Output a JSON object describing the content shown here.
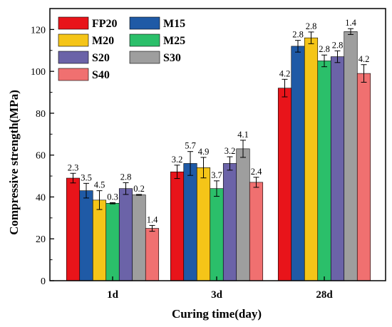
{
  "chart_data": {
    "type": "bar",
    "xlabel": "Curing time(day)",
    "ylabel": "Compressive strength(MPa)",
    "ylim": [
      0,
      130
    ],
    "yticks": [
      0,
      20,
      40,
      60,
      80,
      100,
      120
    ],
    "categories": [
      "1d",
      "3d",
      "28d"
    ],
    "legend_placement": "top-left",
    "series": [
      {
        "name": "FP20",
        "color": "#e8141a",
        "values": [
          49,
          52,
          92
        ],
        "errors": [
          2.3,
          3.2,
          4.2
        ],
        "labels": [
          "2.3",
          "3.2",
          "4.2"
        ]
      },
      {
        "name": "M15",
        "color": "#1f5aa6",
        "values": [
          43,
          56,
          112
        ],
        "errors": [
          3.5,
          5.7,
          2.8
        ],
        "labels": [
          "3.5",
          "5.7",
          "2.8"
        ]
      },
      {
        "name": "M20",
        "color": "#f5c518",
        "values": [
          38.5,
          54,
          116
        ],
        "errors": [
          4.5,
          4.9,
          2.8
        ],
        "labels": [
          "4.5",
          "4.9",
          "2.8"
        ]
      },
      {
        "name": "M25",
        "color": "#2bbf6a",
        "values": [
          37,
          44,
          105
        ],
        "errors": [
          0.3,
          3.7,
          2.8
        ],
        "labels": [
          "0.3",
          "3.7",
          "2.8"
        ]
      },
      {
        "name": "S20",
        "color": "#6b63a8",
        "values": [
          44,
          56,
          107
        ],
        "errors": [
          2.8,
          3.2,
          2.8
        ],
        "labels": [
          "2.8",
          "3.2",
          "2.8"
        ]
      },
      {
        "name": "S30",
        "color": "#9e9e9e",
        "values": [
          41,
          63,
          119
        ],
        "errors": [
          0.2,
          4.1,
          1.4
        ],
        "labels": [
          "0.2",
          "4.1",
          "1.4"
        ]
      },
      {
        "name": "S40",
        "color": "#f07070",
        "values": [
          25,
          47,
          99
        ],
        "errors": [
          1.4,
          2.4,
          4.2
        ],
        "labels": [
          "1.4",
          "2.4",
          "4.2"
        ]
      }
    ]
  }
}
